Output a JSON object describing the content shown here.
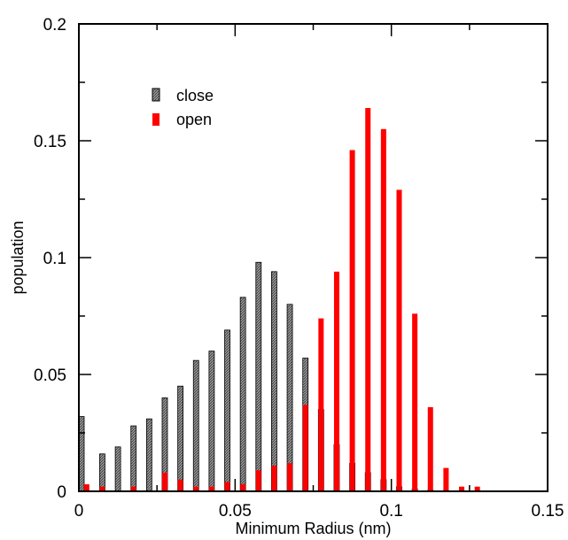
{
  "chart_data": {
    "type": "bar",
    "title": "",
    "xlabel": "Minimum Radius (nm)",
    "ylabel": "population",
    "xlim": [
      0,
      0.15
    ],
    "ylim": [
      0,
      0.2
    ],
    "xticks": [
      0,
      0.05,
      0.1,
      0.15
    ],
    "xtick_labels": [
      "0",
      "0.05",
      "0.1",
      "0.15"
    ],
    "yticks": [
      0,
      0.05,
      0.1,
      0.15,
      0.2
    ],
    "ytick_labels": [
      "0",
      "0.05",
      "0.1",
      "0.15",
      "0.2"
    ],
    "grid": false,
    "legend_position": "top-left",
    "series": [
      {
        "name": "close",
        "color": "#808080",
        "pattern": "hatched",
        "x": [
          0,
          0.0075,
          0.0125,
          0.0175,
          0.0225,
          0.0275,
          0.0325,
          0.0375,
          0.0425,
          0.0475,
          0.0525,
          0.0575,
          0.0625,
          0.0675,
          0.0725,
          0.0775,
          0.0825,
          0.0875,
          0.0925,
          0.0975,
          0.1025,
          0.1075,
          0.1125,
          0.1175,
          0.1225
        ],
        "values": [
          0.032,
          0.016,
          0.019,
          0.028,
          0.031,
          0.04,
          0.045,
          0.056,
          0.06,
          0.069,
          0.083,
          0.098,
          0.094,
          0.08,
          0.057,
          0.035,
          0.02,
          0.012,
          0.008,
          0.005,
          0.002,
          0.001,
          0.0005,
          0.0003,
          0.0002
        ]
      },
      {
        "name": "open",
        "color": "#ff0000",
        "pattern": "solid",
        "x": [
          0.0025,
          0.0075,
          0.0175,
          0.0275,
          0.0325,
          0.0375,
          0.0425,
          0.0475,
          0.0525,
          0.0575,
          0.0625,
          0.0675,
          0.0725,
          0.0775,
          0.0825,
          0.0875,
          0.0925,
          0.0975,
          0.1025,
          0.1075,
          0.1125,
          0.1175,
          0.1225,
          0.1275,
          0.1325
        ],
        "values": [
          0.003,
          0.002,
          0.002,
          0.008,
          0.005,
          0.002,
          0.002,
          0.004,
          0.003,
          0.009,
          0.011,
          0.012,
          0.037,
          0.074,
          0.094,
          0.146,
          0.164,
          0.155,
          0.129,
          0.076,
          0.036,
          0.01,
          0.002,
          0.002,
          0.0
        ]
      }
    ]
  }
}
